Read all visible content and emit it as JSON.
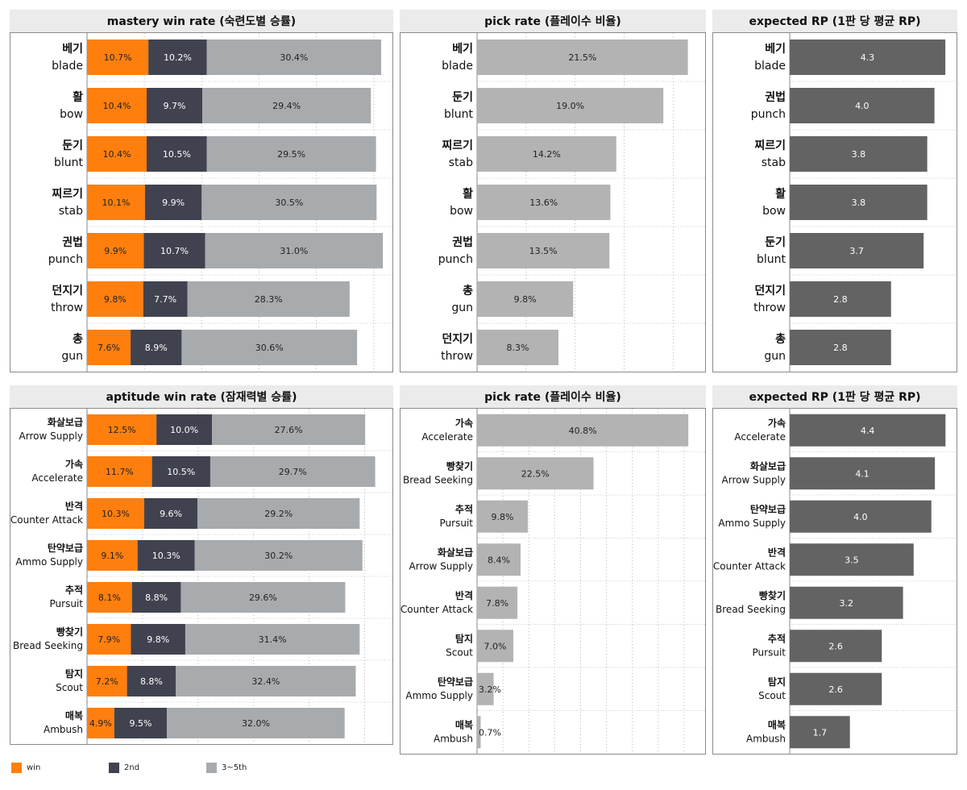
{
  "colors": {
    "win": "#ff7f0e",
    "second": "#40434f",
    "third_to_fifth": "#a8abae",
    "pick": "#b3b3b3",
    "rp": "#636363"
  },
  "legend": [
    {
      "label": "win",
      "color": "#ff7f0e"
    },
    {
      "label": "2nd",
      "color": "#40434f"
    },
    {
      "label": "3~5th",
      "color": "#a8abae"
    }
  ],
  "chart_data": [
    {
      "id": "mastery-win",
      "type": "bar",
      "stacked": true,
      "orientation": "horizontal",
      "title": "mastery win rate (숙련도별 승률)",
      "categories": [
        {
          "ko": "베기",
          "en": "blade"
        },
        {
          "ko": "활",
          "en": "bow"
        },
        {
          "ko": "둔기",
          "en": "blunt"
        },
        {
          "ko": "찌르기",
          "en": "stab"
        },
        {
          "ko": "권법",
          "en": "punch"
        },
        {
          "ko": "던지기",
          "en": "throw"
        },
        {
          "ko": "총",
          "en": "gun"
        }
      ],
      "series": [
        {
          "name": "win",
          "values": [
            10.7,
            10.4,
            10.4,
            10.1,
            9.9,
            9.8,
            7.6
          ],
          "labels": [
            "10.7%",
            "10.4%",
            "10.4%",
            "10.1%",
            "9.9%",
            "9.8%",
            "7.6%"
          ]
        },
        {
          "name": "2nd",
          "values": [
            10.2,
            9.7,
            10.5,
            9.9,
            10.7,
            7.7,
            8.9
          ],
          "labels": [
            "10.2%",
            "9.7%",
            "10.5%",
            "9.9%",
            "10.7%",
            "7.7%",
            "8.9%"
          ]
        },
        {
          "name": "3~5th",
          "values": [
            30.4,
            29.4,
            29.5,
            30.5,
            31.0,
            28.3,
            30.6
          ],
          "labels": [
            "30.4%",
            "29.4%",
            "29.5%",
            "30.5%",
            "31.0%",
            "28.3%",
            "30.6%"
          ]
        }
      ],
      "xlim": [
        0,
        52
      ],
      "grid": "vertical-dotted"
    },
    {
      "id": "mastery-pick",
      "type": "bar",
      "orientation": "horizontal",
      "title": "pick rate (플레이수 비율)",
      "categories": [
        {
          "ko": "베기",
          "en": "blade"
        },
        {
          "ko": "둔기",
          "en": "blunt"
        },
        {
          "ko": "찌르기",
          "en": "stab"
        },
        {
          "ko": "활",
          "en": "bow"
        },
        {
          "ko": "권법",
          "en": "punch"
        },
        {
          "ko": "총",
          "en": "gun"
        },
        {
          "ko": "던지기",
          "en": "throw"
        }
      ],
      "values": [
        21.5,
        19.0,
        14.2,
        13.6,
        13.5,
        9.8,
        8.3
      ],
      "labels": [
        "21.5%",
        "19.0%",
        "14.2%",
        "13.6%",
        "13.5%",
        "9.8%",
        "8.3%"
      ],
      "xlim": [
        0,
        22.6
      ],
      "grid": "vertical-dotted"
    },
    {
      "id": "mastery-rp",
      "type": "bar",
      "orientation": "horizontal",
      "title": "expected RP (1판 당 평균 RP)",
      "categories": [
        {
          "ko": "베기",
          "en": "blade"
        },
        {
          "ko": "권법",
          "en": "punch"
        },
        {
          "ko": "찌르기",
          "en": "stab"
        },
        {
          "ko": "활",
          "en": "bow"
        },
        {
          "ko": "둔기",
          "en": "blunt"
        },
        {
          "ko": "던지기",
          "en": "throw"
        },
        {
          "ko": "총",
          "en": "gun"
        }
      ],
      "values": [
        4.3,
        4.0,
        3.8,
        3.8,
        3.7,
        2.8,
        2.8
      ],
      "labels": [
        "4.3",
        "4.0",
        "3.8",
        "3.8",
        "3.7",
        "2.8",
        "2.8"
      ],
      "xlim": [
        0,
        4.52
      ],
      "grid": "none"
    },
    {
      "id": "aptitude-win",
      "type": "bar",
      "stacked": true,
      "orientation": "horizontal",
      "title": "aptitude win rate (잠재력별 승률)",
      "categories": [
        {
          "ko": "화살보급",
          "en": "Arrow Supply"
        },
        {
          "ko": "가속",
          "en": "Accelerate"
        },
        {
          "ko": "반격",
          "en": "Counter Attack"
        },
        {
          "ko": "탄약보급",
          "en": "Ammo Supply"
        },
        {
          "ko": "추적",
          "en": "Pursuit"
        },
        {
          "ko": "빵찾기",
          "en": "Bread Seeking"
        },
        {
          "ko": "탐지",
          "en": "Scout"
        },
        {
          "ko": "매복",
          "en": "Ambush"
        }
      ],
      "series": [
        {
          "name": "win",
          "values": [
            12.5,
            11.7,
            10.3,
            9.1,
            8.1,
            7.9,
            7.2,
            4.9
          ],
          "labels": [
            "12.5%",
            "11.7%",
            "10.3%",
            "9.1%",
            "8.1%",
            "7.9%",
            "7.2%",
            "4.9%"
          ]
        },
        {
          "name": "2nd",
          "values": [
            10.0,
            10.5,
            9.6,
            10.3,
            8.8,
            9.8,
            8.8,
            9.5
          ],
          "labels": [
            "10.0%",
            "10.5%",
            "9.6%",
            "10.3%",
            "8.8%",
            "9.8%",
            "8.8%",
            "9.5%"
          ]
        },
        {
          "name": "3~5th",
          "values": [
            27.6,
            29.7,
            29.2,
            30.2,
            29.6,
            31.4,
            32.4,
            32.0
          ],
          "labels": [
            "27.6%",
            "29.7%",
            "29.2%",
            "30.2%",
            "29.6%",
            "31.4%",
            "32.4%",
            "32.0%"
          ]
        }
      ],
      "xlim": [
        0,
        53.7
      ],
      "grid": "vertical-dotted"
    },
    {
      "id": "aptitude-pick",
      "type": "bar",
      "orientation": "horizontal",
      "title": "pick rate (플레이수 비율)",
      "categories": [
        {
          "ko": "가속",
          "en": "Accelerate"
        },
        {
          "ko": "빵찾기",
          "en": "Bread Seeking"
        },
        {
          "ko": "추적",
          "en": "Pursuit"
        },
        {
          "ko": "화살보급",
          "en": "Arrow Supply"
        },
        {
          "ko": "반격",
          "en": "Counter Attack"
        },
        {
          "ko": "탐지",
          "en": "Scout"
        },
        {
          "ko": "탄약보급",
          "en": "Ammo Supply"
        },
        {
          "ko": "매복",
          "en": "Ambush"
        }
      ],
      "values": [
        40.8,
        22.5,
        9.8,
        8.4,
        7.8,
        7.0,
        3.2,
        0.7
      ],
      "labels": [
        "40.8%",
        "22.5%",
        "9.8%",
        "8.4%",
        "7.8%",
        "7.0%",
        "3.2%",
        "0.7%"
      ],
      "xlim": [
        0,
        42.8
      ],
      "grid": "vertical-dotted"
    },
    {
      "id": "aptitude-rp",
      "type": "bar",
      "orientation": "horizontal",
      "title": "expected RP (1판 당 평균 RP)",
      "categories": [
        {
          "ko": "가속",
          "en": "Accelerate"
        },
        {
          "ko": "화살보급",
          "en": "Arrow Supply"
        },
        {
          "ko": "탄약보급",
          "en": "Ammo Supply"
        },
        {
          "ko": "반격",
          "en": "Counter Attack"
        },
        {
          "ko": "빵찾기",
          "en": "Bread Seeking"
        },
        {
          "ko": "추적",
          "en": "Pursuit"
        },
        {
          "ko": "탐지",
          "en": "Scout"
        },
        {
          "ko": "매복",
          "en": "Ambush"
        }
      ],
      "values": [
        4.4,
        4.1,
        4.0,
        3.5,
        3.2,
        2.6,
        2.6,
        1.7
      ],
      "labels": [
        "4.4",
        "4.1",
        "4.0",
        "3.5",
        "3.2",
        "2.6",
        "2.6",
        "1.7"
      ],
      "xlim": [
        0,
        4.62
      ],
      "grid": "none"
    }
  ]
}
